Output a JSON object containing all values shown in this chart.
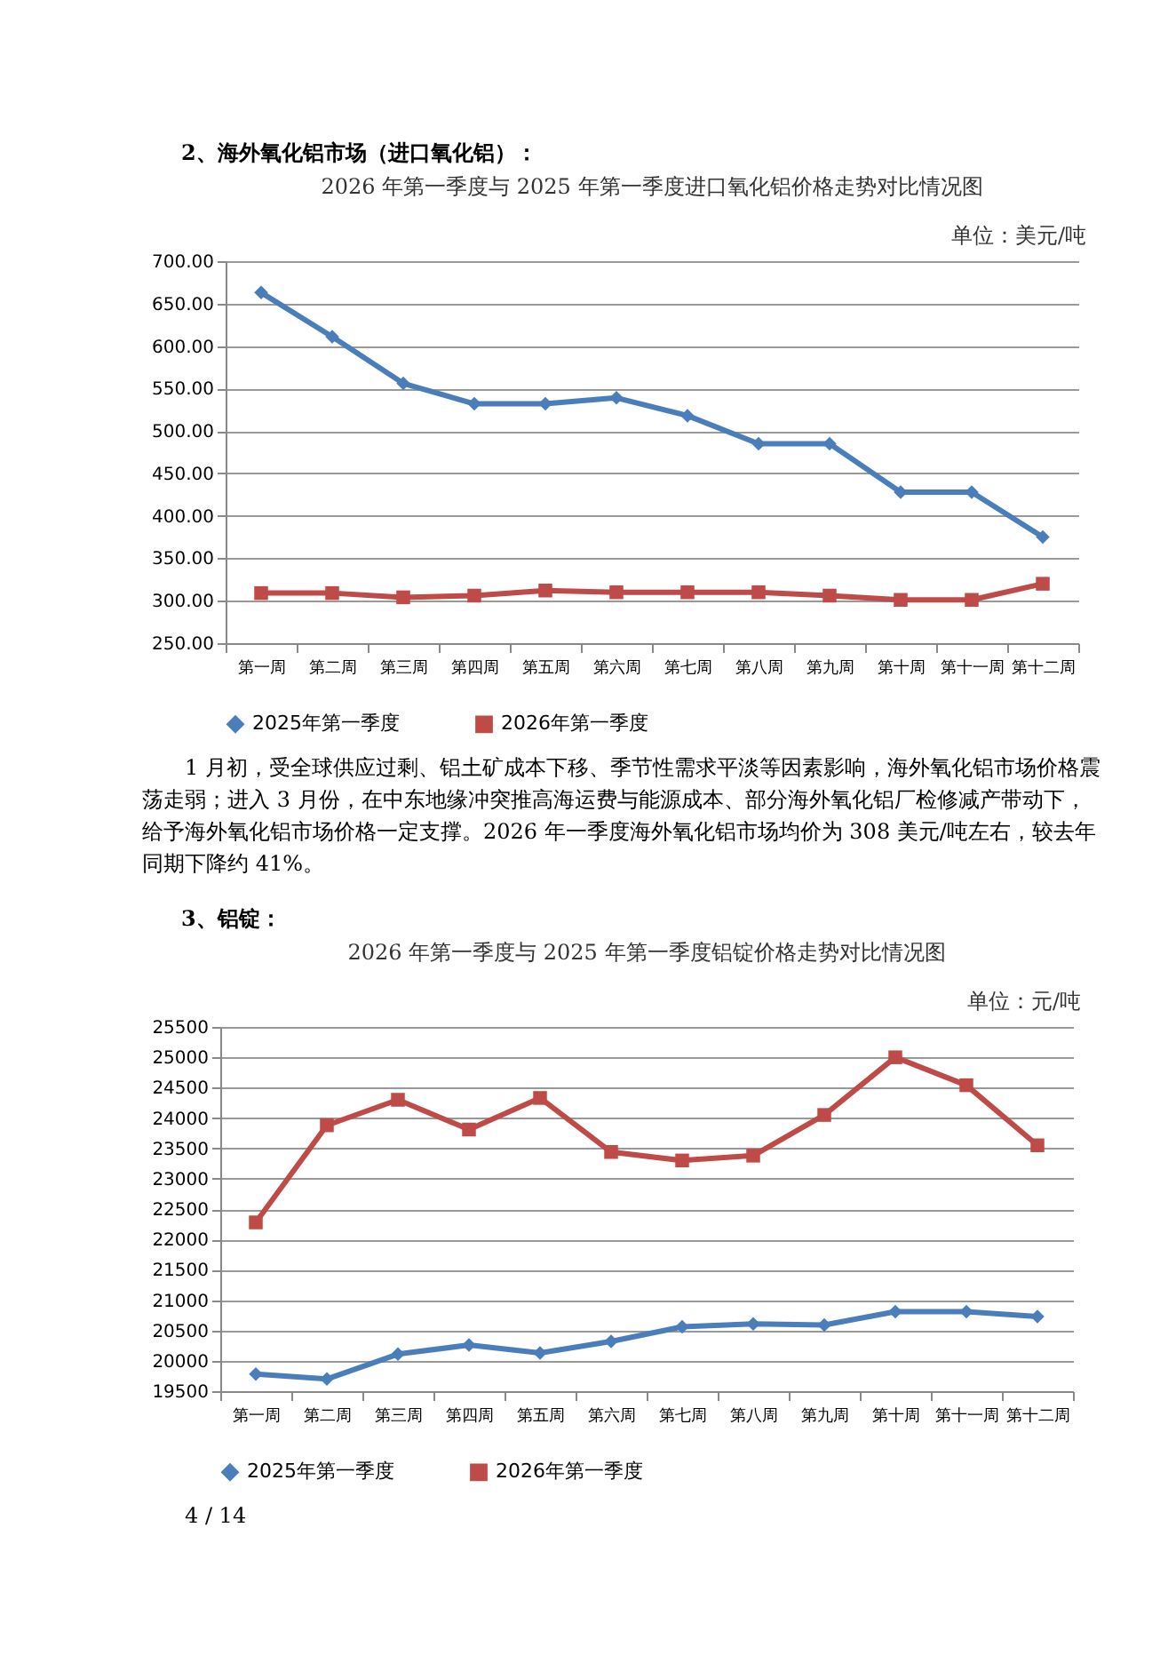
{
  "chart_data": [
    {
      "type": "line",
      "title": "2026 年第一季度与 2025 年第一季度进口氧化铝价格走势对比情况图",
      "ylabel": "单位：美元/吨",
      "categories": [
        "第一周",
        "第二周",
        "第三周",
        "第四周",
        "第五周",
        "第六周",
        "第七周",
        "第八周",
        "第九周",
        "第十周",
        "第十一周",
        "第十二周"
      ],
      "series": [
        {
          "name": "2025年第一季度",
          "color": "#4a7ebb",
          "marker": "diamond",
          "values": [
            663,
            611,
            556,
            532,
            532,
            539,
            518,
            485,
            485,
            428,
            428,
            375
          ]
        },
        {
          "name": "2026年第一季度",
          "color": "#be4b48",
          "marker": "square",
          "values": [
            309,
            309,
            304,
            306,
            312,
            310,
            310,
            310,
            306,
            301,
            301,
            320
          ]
        }
      ],
      "ylim": [
        250,
        700
      ],
      "yticks": [
        {
          "value": 250,
          "label": "250.00"
        },
        {
          "value": 300,
          "label": "300.00"
        },
        {
          "value": 350,
          "label": "350.00"
        },
        {
          "value": 400,
          "label": "400.00"
        },
        {
          "value": 450,
          "label": "450.00"
        },
        {
          "value": 500,
          "label": "500.00"
        },
        {
          "value": 550,
          "label": "550.00"
        },
        {
          "value": 600,
          "label": "600.00"
        },
        {
          "value": 650,
          "label": "650.00"
        },
        {
          "value": 700,
          "label": "700.00"
        }
      ],
      "grid": "y",
      "legend": "bottom",
      "annotations": [
        "2、海外氧化铝市场（进口氧化铝）：",
        "1 月初，受全球供应过剩、铝土矿成本下移、季节性需求平淡等因素影响，海外氧化铝市场价格震荡走弱；进入 3 月份，在中东地缘冲突推高海运费与能源成本、部分海外氧化铝厂检修减产带动下，给予海外氧化铝市场价格一定支撑。2026 年一季度海外氧化铝市场均价为 308 美元/吨左右，较去年同期下降约 41%。"
      ]
    },
    {
      "type": "line",
      "title": "2026 年第一季度与 2025 年第一季度铝锭价格走势对比情况图",
      "ylabel": "单位：元/吨",
      "categories": [
        "第一周",
        "第二周",
        "第三周",
        "第四周",
        "第五周",
        "第六周",
        "第七周",
        "第八周",
        "第九周",
        "第十周",
        "第十一周",
        "第十二周"
      ],
      "series": [
        {
          "name": "2025年第一季度",
          "color": "#4a7ebb",
          "marker": "diamond",
          "values": [
            19780,
            19700,
            20110,
            20260,
            20130,
            20320,
            20560,
            20610,
            20590,
            20810,
            20810,
            20730
          ]
        },
        {
          "name": "2026年第一季度",
          "color": "#be4b48",
          "marker": "square",
          "values": [
            22280,
            23880,
            24300,
            23810,
            24330,
            23440,
            23300,
            23380,
            24050,
            25000,
            24540,
            23550
          ]
        }
      ],
      "ylim": [
        19500,
        25500
      ],
      "yticks": [
        19500,
        20000,
        20500,
        21000,
        21500,
        22000,
        22500,
        23000,
        23500,
        24000,
        24500,
        25000,
        25500
      ],
      "grid": "y",
      "legend": "bottom",
      "annotations": [
        "3、铝锭：",
        "4 / 14"
      ]
    }
  ]
}
